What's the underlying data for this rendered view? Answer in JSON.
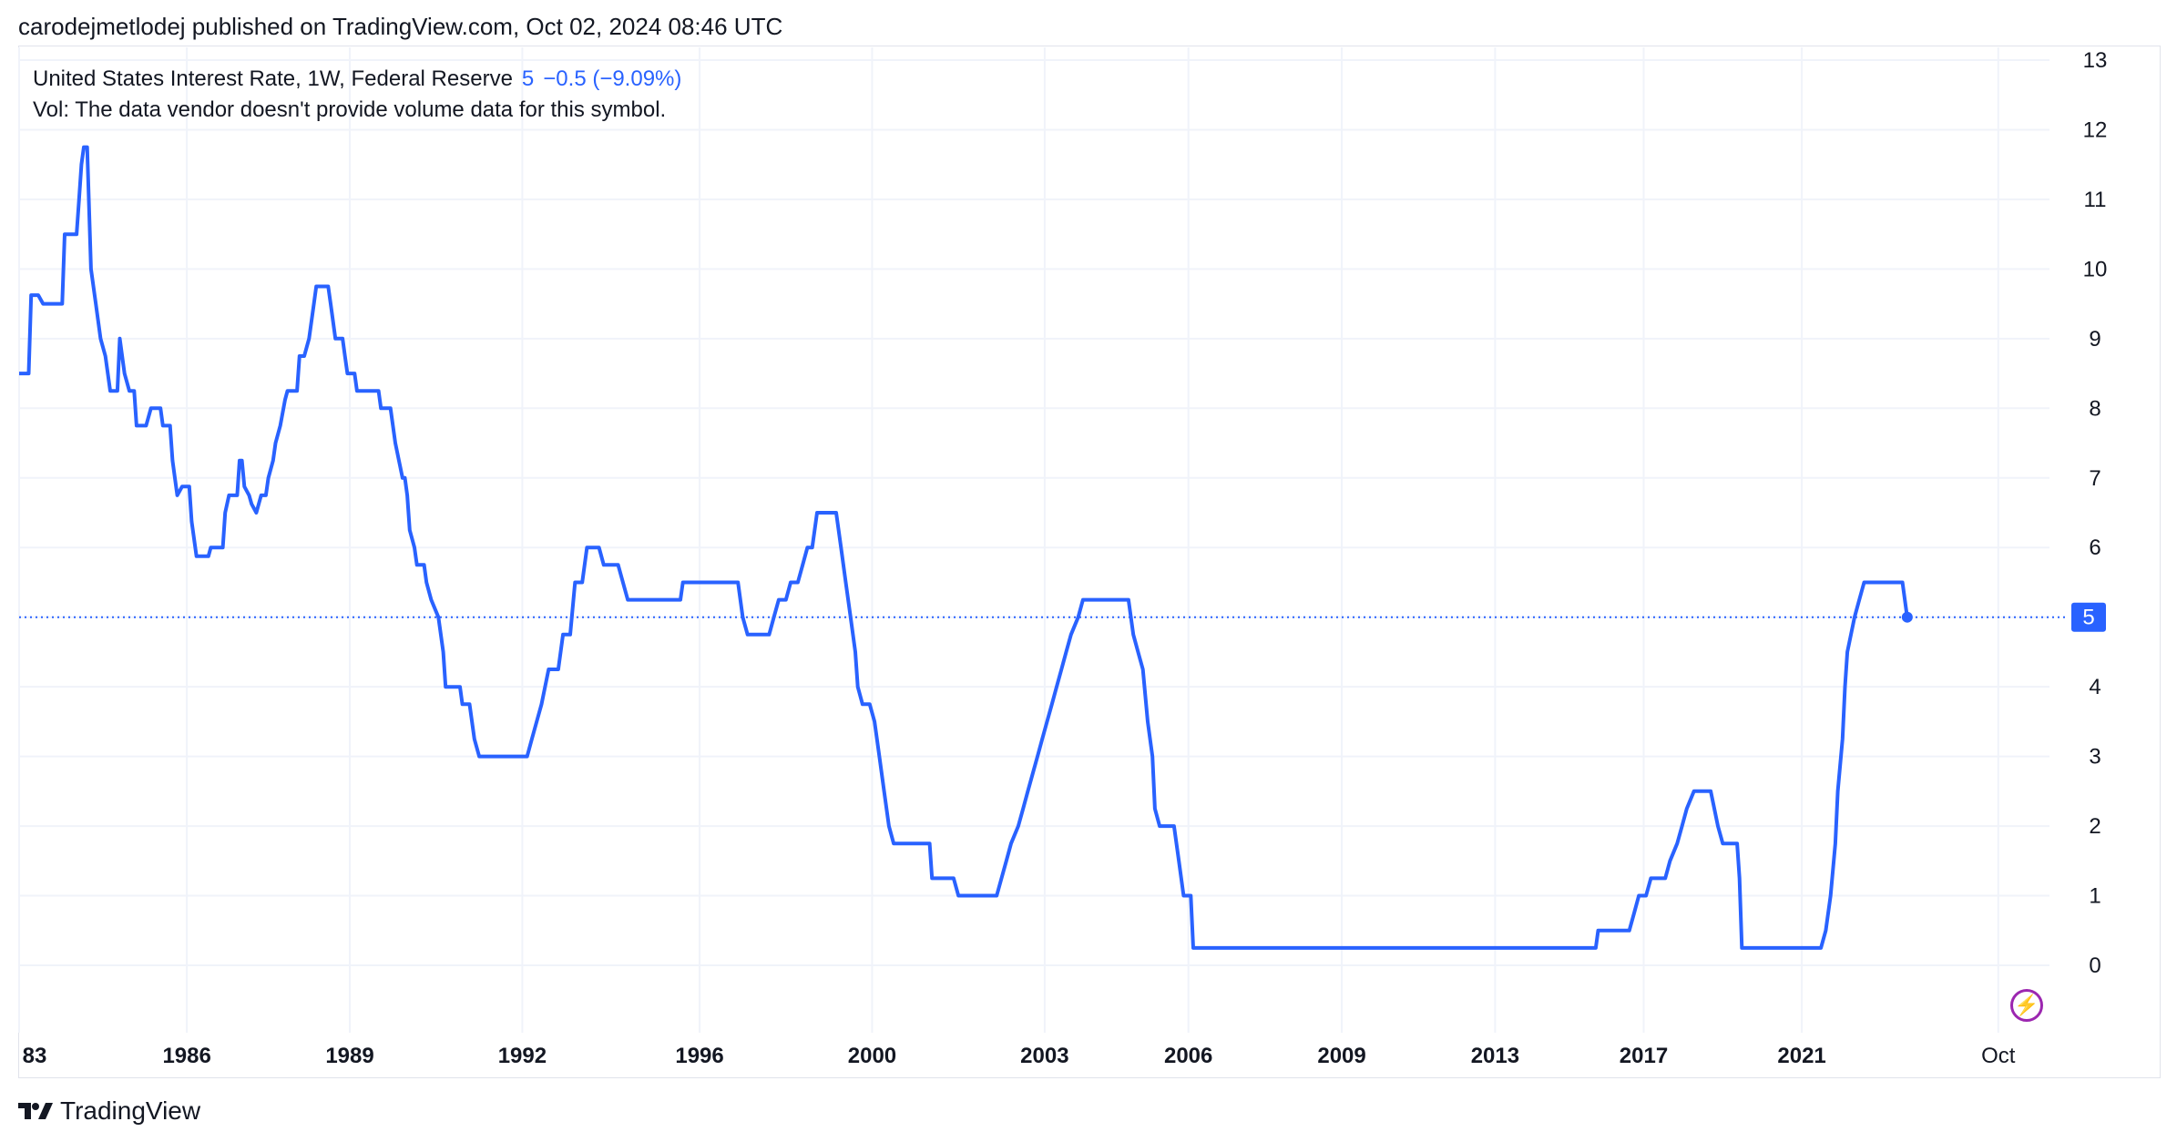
{
  "header": {
    "text": "carodejmetlodej published on TradingView.com, Oct 02, 2024 08:46 UTC"
  },
  "legend": {
    "symbol": "United States Interest Rate, 1W, Federal Reserve",
    "value": "5",
    "change": "−0.5 (−9.09%)",
    "vol": "Vol: The data vendor doesn't provide volume data for this symbol."
  },
  "footer": {
    "brand": "TradingView"
  },
  "colors": {
    "line": "#2962ff",
    "grid": "#f0f3fa",
    "text": "#131722"
  },
  "chart_data": {
    "type": "line",
    "ylim": [
      -0.6,
      13
    ],
    "yticks": [
      0,
      1,
      2,
      3,
      4,
      5,
      6,
      7,
      8,
      9,
      10,
      11,
      12,
      13
    ],
    "xlim": [
      1983.0,
      2024.95
    ],
    "xticks": [
      {
        "x": 1983.0,
        "label": "83"
      },
      {
        "x": 1986.5,
        "label": "1986"
      },
      {
        "x": 1989.9,
        "label": "1989"
      },
      {
        "x": 1993.5,
        "label": "1992"
      },
      {
        "x": 1997.2,
        "label": "1996"
      },
      {
        "x": 2000.8,
        "label": "2000"
      },
      {
        "x": 2004.4,
        "label": "2003"
      },
      {
        "x": 2007.4,
        "label": "2006"
      },
      {
        "x": 2010.6,
        "label": "2009"
      },
      {
        "x": 2013.8,
        "label": "2013"
      },
      {
        "x": 2016.9,
        "label": "2017"
      },
      {
        "x": 2020.2,
        "label": "2021"
      },
      {
        "x": 2024.3,
        "label": "Oct"
      }
    ],
    "last_value": 5,
    "last_label": "5",
    "series": [
      {
        "points": [
          [
            1983.0,
            8.5
          ],
          [
            1983.2,
            8.5
          ],
          [
            1983.25,
            9.625
          ],
          [
            1983.4,
            9.625
          ],
          [
            1983.5,
            9.5
          ],
          [
            1983.9,
            9.5
          ],
          [
            1983.95,
            10.5
          ],
          [
            1984.2,
            10.5
          ],
          [
            1984.25,
            11
          ],
          [
            1984.3,
            11.5
          ],
          [
            1984.35,
            11.75
          ],
          [
            1984.42,
            11.75
          ],
          [
            1984.5,
            10
          ],
          [
            1984.6,
            9.5
          ],
          [
            1984.7,
            9
          ],
          [
            1984.8,
            8.75
          ],
          [
            1984.9,
            8.25
          ],
          [
            1985.05,
            8.25
          ],
          [
            1985.1,
            9
          ],
          [
            1985.2,
            8.5
          ],
          [
            1985.3,
            8.25
          ],
          [
            1985.4,
            8.25
          ],
          [
            1985.45,
            7.75
          ],
          [
            1985.65,
            7.75
          ],
          [
            1985.75,
            8
          ],
          [
            1985.95,
            8
          ],
          [
            1986.0,
            7.75
          ],
          [
            1986.15,
            7.75
          ],
          [
            1986.2,
            7.25
          ],
          [
            1986.3,
            6.75
          ],
          [
            1986.4,
            6.875
          ],
          [
            1986.55,
            6.875
          ],
          [
            1986.6,
            6.375
          ],
          [
            1986.7,
            5.875
          ],
          [
            1986.95,
            5.875
          ],
          [
            1987.0,
            6
          ],
          [
            1987.25,
            6
          ],
          [
            1987.3,
            6.5
          ],
          [
            1987.38,
            6.75
          ],
          [
            1987.55,
            6.75
          ],
          [
            1987.6,
            7.25
          ],
          [
            1987.65,
            7.25
          ],
          [
            1987.7,
            6.875
          ],
          [
            1987.8,
            6.75
          ],
          [
            1987.85,
            6.625
          ],
          [
            1987.95,
            6.5
          ],
          [
            1988.05,
            6.75
          ],
          [
            1988.15,
            6.75
          ],
          [
            1988.2,
            7.0
          ],
          [
            1988.3,
            7.25
          ],
          [
            1988.35,
            7.5
          ],
          [
            1988.45,
            7.75
          ],
          [
            1988.55,
            8.125
          ],
          [
            1988.6,
            8.25
          ],
          [
            1988.8,
            8.25
          ],
          [
            1988.85,
            8.75
          ],
          [
            1988.95,
            8.75
          ],
          [
            1989.05,
            9.0
          ],
          [
            1989.15,
            9.5
          ],
          [
            1989.2,
            9.75
          ],
          [
            1989.45,
            9.75
          ],
          [
            1989.5,
            9.5
          ],
          [
            1989.55,
            9.25
          ],
          [
            1989.6,
            9.0
          ],
          [
            1989.75,
            9.0
          ],
          [
            1989.8,
            8.75
          ],
          [
            1989.85,
            8.5
          ],
          [
            1990.0,
            8.5
          ],
          [
            1990.05,
            8.25
          ],
          [
            1990.5,
            8.25
          ],
          [
            1990.55,
            8.0
          ],
          [
            1990.75,
            8.0
          ],
          [
            1990.85,
            7.5
          ],
          [
            1991.0,
            7.0
          ],
          [
            1991.05,
            7.0
          ],
          [
            1991.1,
            6.75
          ],
          [
            1991.15,
            6.25
          ],
          [
            1991.25,
            6.0
          ],
          [
            1991.3,
            5.75
          ],
          [
            1991.45,
            5.75
          ],
          [
            1991.5,
            5.5
          ],
          [
            1991.6,
            5.25
          ],
          [
            1991.75,
            5.0
          ],
          [
            1991.85,
            4.5
          ],
          [
            1991.9,
            4.0
          ],
          [
            1992.2,
            4.0
          ],
          [
            1992.25,
            3.75
          ],
          [
            1992.4,
            3.75
          ],
          [
            1992.5,
            3.25
          ],
          [
            1992.6,
            3.0
          ],
          [
            1993.6,
            3.0
          ],
          [
            1993.7,
            3.25
          ],
          [
            1993.8,
            3.5
          ],
          [
            1993.9,
            3.75
          ],
          [
            1994.05,
            4.25
          ],
          [
            1994.25,
            4.25
          ],
          [
            1994.35,
            4.75
          ],
          [
            1994.5,
            4.75
          ],
          [
            1994.6,
            5.5
          ],
          [
            1994.75,
            5.5
          ],
          [
            1994.85,
            6.0
          ],
          [
            1995.1,
            6.0
          ],
          [
            1995.2,
            5.75
          ],
          [
            1995.5,
            5.75
          ],
          [
            1995.6,
            5.5
          ],
          [
            1995.7,
            5.25
          ],
          [
            1996.8,
            5.25
          ],
          [
            1996.85,
            5.5
          ],
          [
            1998.0,
            5.5
          ],
          [
            1998.1,
            5.0
          ],
          [
            1998.2,
            4.75
          ],
          [
            1998.65,
            4.75
          ],
          [
            1998.75,
            5.0
          ],
          [
            1998.85,
            5.25
          ],
          [
            1999.0,
            5.25
          ],
          [
            1999.1,
            5.5
          ],
          [
            1999.25,
            5.5
          ],
          [
            1999.35,
            5.75
          ],
          [
            1999.45,
            6.0
          ],
          [
            1999.55,
            6.0
          ],
          [
            1999.65,
            6.5
          ],
          [
            2000.05,
            6.5
          ],
          [
            2000.15,
            6.0
          ],
          [
            2000.25,
            5.5
          ],
          [
            2000.35,
            5.0
          ],
          [
            2000.45,
            4.5
          ],
          [
            2000.5,
            4.0
          ],
          [
            2000.6,
            3.75
          ],
          [
            2000.75,
            3.75
          ],
          [
            2000.85,
            3.5
          ],
          [
            2000.95,
            3.0
          ],
          [
            2001.05,
            2.5
          ],
          [
            2001.15,
            2.0
          ],
          [
            2001.25,
            1.75
          ],
          [
            2002.0,
            1.75
          ],
          [
            2002.05,
            1.25
          ],
          [
            2002.5,
            1.25
          ],
          [
            2002.6,
            1.0
          ],
          [
            2003.4,
            1.0
          ],
          [
            2003.5,
            1.25
          ],
          [
            2003.6,
            1.5
          ],
          [
            2003.7,
            1.75
          ],
          [
            2003.85,
            2.0
          ],
          [
            2003.95,
            2.25
          ],
          [
            2004.05,
            2.5
          ],
          [
            2004.15,
            2.75
          ],
          [
            2004.25,
            3.0
          ],
          [
            2004.35,
            3.25
          ],
          [
            2004.45,
            3.5
          ],
          [
            2004.55,
            3.75
          ],
          [
            2004.65,
            4.0
          ],
          [
            2004.75,
            4.25
          ],
          [
            2004.85,
            4.5
          ],
          [
            2004.95,
            4.75
          ],
          [
            2005.1,
            5.0
          ],
          [
            2005.2,
            5.25
          ],
          [
            2006.15,
            5.25
          ],
          [
            2006.25,
            4.75
          ],
          [
            2006.35,
            4.5
          ],
          [
            2006.45,
            4.25
          ],
          [
            2006.55,
            3.5
          ],
          [
            2006.65,
            3.0
          ],
          [
            2006.7,
            2.25
          ],
          [
            2006.8,
            2.0
          ],
          [
            2007.1,
            2.0
          ],
          [
            2007.2,
            1.5
          ],
          [
            2007.3,
            1.0
          ],
          [
            2007.45,
            1.0
          ],
          [
            2007.5,
            0.25
          ],
          [
            2015.9,
            0.25
          ],
          [
            2015.95,
            0.5
          ],
          [
            2016.6,
            0.5
          ],
          [
            2016.7,
            0.75
          ],
          [
            2016.8,
            1.0
          ],
          [
            2016.95,
            1.0
          ],
          [
            2017.05,
            1.25
          ],
          [
            2017.35,
            1.25
          ],
          [
            2017.45,
            1.5
          ],
          [
            2017.6,
            1.75
          ],
          [
            2017.7,
            2.0
          ],
          [
            2017.8,
            2.25
          ],
          [
            2017.95,
            2.5
          ],
          [
            2018.3,
            2.5
          ],
          [
            2018.45,
            2.0
          ],
          [
            2018.55,
            1.75
          ],
          [
            2018.85,
            1.75
          ],
          [
            2018.9,
            1.25
          ],
          [
            2018.95,
            0.25
          ],
          [
            2020.6,
            0.25
          ],
          [
            2020.7,
            0.5
          ],
          [
            2020.8,
            1.0
          ],
          [
            2020.9,
            1.75
          ],
          [
            2020.95,
            2.5
          ],
          [
            2021.05,
            3.25
          ],
          [
            2021.1,
            4.0
          ],
          [
            2021.15,
            4.5
          ],
          [
            2021.3,
            5.0
          ],
          [
            2021.4,
            5.25
          ],
          [
            2021.5,
            5.5
          ],
          [
            2022.3,
            5.5
          ],
          [
            2022.4,
            5.0
          ]
        ]
      }
    ]
  }
}
